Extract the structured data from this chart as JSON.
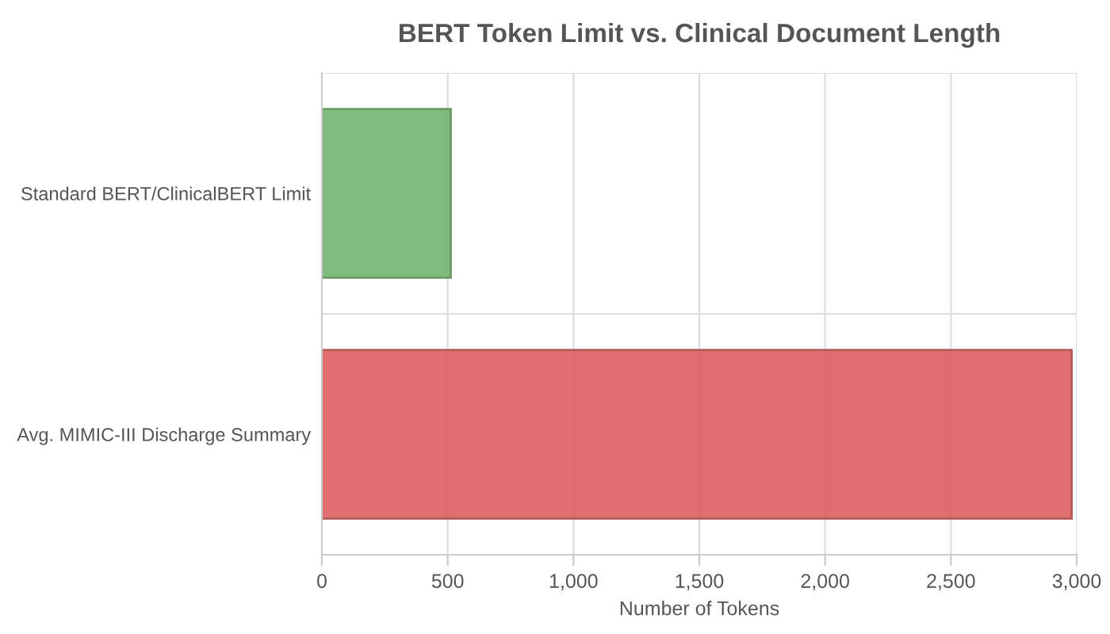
{
  "chart_data": {
    "type": "bar",
    "orientation": "horizontal",
    "title": "BERT Token Limit vs. Clinical Document Length",
    "categories": [
      "Standard BERT/ClinicalBERT Limit",
      "Avg. MIMIC-III Discharge Summary"
    ],
    "values": [
      512,
      2980
    ],
    "colors": [
      "#79b875",
      "#df6668"
    ],
    "xlabel": "Number of Tokens",
    "xlim": [
      0,
      3000
    ],
    "xticks": [
      0,
      {
        "value": 500,
        "label": "500"
      },
      {
        "value": 1000,
        "label": "1,000"
      },
      {
        "value": 1500,
        "label": "1,500"
      },
      {
        "value": 2000,
        "label": "2,000"
      },
      {
        "value": 2500,
        "label": "2,500"
      },
      {
        "value": 3000,
        "label": "3,000"
      }
    ],
    "grid": true
  }
}
